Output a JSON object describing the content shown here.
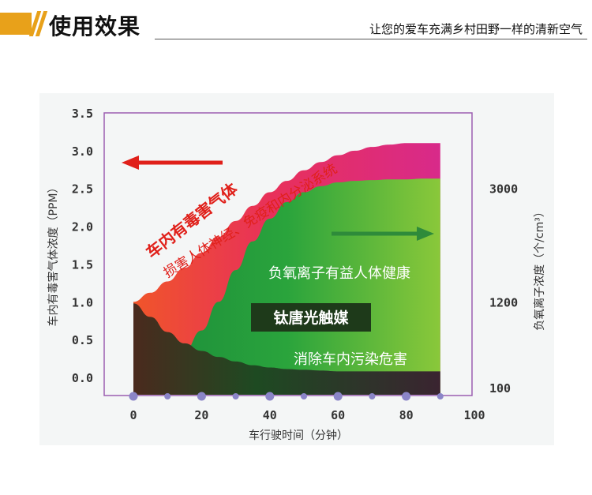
{
  "header": {
    "title": "使用效果",
    "subtitle": "让您的爱车充满乡村田野一样的清新空气",
    "accent_color": "#e8a11a"
  },
  "chart_data": {
    "type": "area",
    "left_axis_label": "车内有毒害气体浓度（PPM）",
    "right_axis_label": "负氧离子浓度（个/cm³）",
    "x_label": "车行驶时间（分钟）",
    "x_ticks": [
      0,
      20,
      40,
      60,
      80,
      100
    ],
    "y_ticks": [
      "0.0",
      "0.5",
      "1.0",
      "1.5",
      "2.0",
      "2.5",
      "3.0",
      "3.5"
    ],
    "y_range": [
      0,
      3.5
    ],
    "x_range": [
      0,
      100
    ],
    "right_ticks": [
      {
        "label": "3000",
        "value": 2.5
      },
      {
        "label": "1200",
        "value": 1.0
      },
      {
        "label": "100",
        "value": 0.0
      }
    ],
    "series": [
      {
        "name": "车内有毒害气体",
        "color": "#e0206a",
        "x": [
          0,
          5,
          10,
          15,
          20,
          25,
          30,
          35,
          40,
          45,
          50,
          55,
          60,
          65,
          70,
          75,
          80,
          85,
          90
        ],
        "values": [
          1.0,
          1.12,
          1.27,
          1.45,
          1.65,
          1.86,
          2.07,
          2.27,
          2.45,
          2.6,
          2.74,
          2.85,
          2.94,
          3.0,
          3.05,
          3.08,
          3.1,
          3.1,
          3.1
        ]
      },
      {
        "name": "负氧离子",
        "color": "#7ac143",
        "x": [
          0,
          5,
          10,
          15,
          20,
          25,
          30,
          35,
          40,
          45,
          50,
          55,
          60,
          65,
          70,
          75,
          80,
          85,
          90
        ],
        "values": [
          0.12,
          0.14,
          0.2,
          0.35,
          0.62,
          1.0,
          1.42,
          1.8,
          2.1,
          2.32,
          2.45,
          2.53,
          2.58,
          2.6,
          2.61,
          2.62,
          2.62,
          2.63,
          2.63
        ]
      },
      {
        "name": "钛唐光触媒消除",
        "color": "#3a2a22",
        "x": [
          0,
          5,
          10,
          15,
          20,
          25,
          30,
          35,
          40,
          45,
          50,
          55,
          60,
          65,
          70,
          75,
          80,
          85,
          90
        ],
        "values": [
          0.98,
          0.8,
          0.6,
          0.45,
          0.35,
          0.27,
          0.21,
          0.16,
          0.13,
          0.11,
          0.1,
          0.09,
          0.08,
          0.08,
          0.08,
          0.08,
          0.08,
          0.08,
          0.08
        ]
      }
    ],
    "annotations": {
      "toxic_title": "车内有毒害气体",
      "toxic_sub": "损害人体神经、免疫和内分泌系统",
      "ion_text": "负氧离子有益人体健康",
      "product": "钛唐光触媒",
      "eliminate": "消除车内污染危害"
    },
    "grid": false
  }
}
